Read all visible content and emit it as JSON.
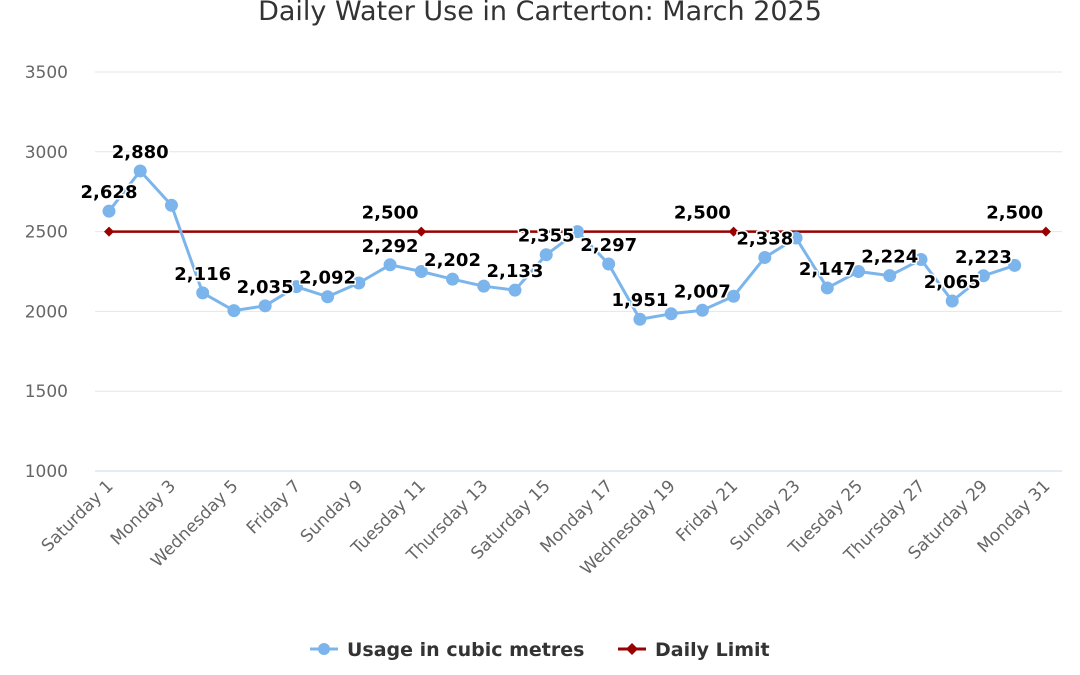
{
  "chart_data": {
    "type": "line",
    "title": "Daily Water Use in Carterton: March 2025",
    "xlabel": "",
    "ylabel": "",
    "ylim": [
      1000,
      3500
    ],
    "yticks": [
      "1000",
      "1500",
      "2000",
      "2500",
      "3000",
      "3500"
    ],
    "grid": true,
    "legend_position": "bottom-center",
    "categories": [
      "Saturday 1",
      "Sunday 2",
      "Monday 3",
      "Tuesday 4",
      "Wednesday 5",
      "Thursday 6",
      "Friday 7",
      "Saturday 8",
      "Sunday 9",
      "Monday 10",
      "Tuesday 11",
      "Wednesday 12",
      "Thursday 13",
      "Friday 14",
      "Saturday 15",
      "Sunday 16",
      "Monday 17",
      "Tuesday 18",
      "Wednesday 19",
      "Thursday 20",
      "Friday 21",
      "Saturday 22",
      "Sunday 23",
      "Monday 24",
      "Tuesday 25",
      "Wednesday 26",
      "Thursday 27",
      "Friday 28",
      "Saturday 29",
      "Sunday 30",
      "Monday 31"
    ],
    "shown_tick_labels": [
      "Saturday 1",
      "Monday 3",
      "Wednesday 5",
      "Friday 7",
      "Sunday 9",
      "Tuesday 11",
      "Thursday 13",
      "Saturday 15",
      "Monday 17",
      "Wednesday 19",
      "Friday 21",
      "Sunday 23",
      "Tuesday 25",
      "Thursday 27",
      "Saturday 29",
      "Monday 31"
    ],
    "series": [
      {
        "name": "Usage in cubic metres",
        "color": "#7cb5ec",
        "values": [
          2628,
          2880,
          2665,
          2116,
          2005,
          2035,
          2155,
          2092,
          2178,
          2292,
          2250,
          2202,
          2158,
          2133,
          2355,
          2500,
          2297,
          1951,
          1985,
          2007,
          2095,
          2338,
          2460,
          2147,
          2250,
          2224,
          2325,
          2065,
          2223,
          2288,
          null
        ],
        "label_values": [
          "2,628",
          "2,880",
          null,
          "2,116",
          null,
          "2,035",
          null,
          "2,092",
          null,
          "2,292",
          null,
          "2,202",
          null,
          "2,133",
          "2,355",
          null,
          "2,297",
          "1,951",
          null,
          "2,007",
          null,
          "2,338",
          null,
          "2,147",
          null,
          "2,224",
          null,
          "2,065",
          "2,223",
          null,
          null
        ]
      },
      {
        "name": "Daily Limit",
        "color": "#990000",
        "values": [
          2500,
          null,
          null,
          null,
          null,
          null,
          null,
          null,
          null,
          null,
          2500,
          null,
          null,
          null,
          null,
          null,
          null,
          null,
          null,
          null,
          2500,
          null,
          null,
          null,
          null,
          null,
          null,
          null,
          null,
          null,
          2500
        ],
        "label_values": [
          null,
          null,
          null,
          null,
          null,
          null,
          null,
          null,
          null,
          "2,500",
          null,
          null,
          null,
          null,
          null,
          null,
          null,
          null,
          null,
          "2,500",
          null,
          null,
          null,
          null,
          null,
          null,
          null,
          null,
          null,
          "2,500",
          null
        ]
      }
    ]
  }
}
